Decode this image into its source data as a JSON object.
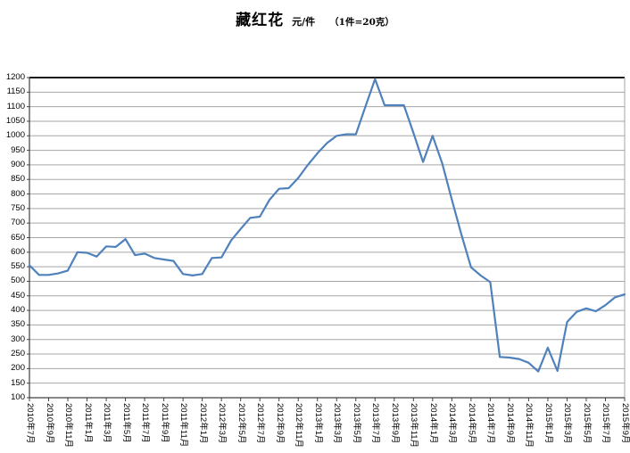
{
  "title": {
    "main": "藏红花",
    "unit": "元/件",
    "spec": "（1件=20克）"
  },
  "chart_data": {
    "type": "line",
    "title": "藏红花 元/件 （1件=20克）",
    "xlabel": "",
    "ylabel": "",
    "ylim": [
      100,
      1200
    ],
    "y_tick_step": 50,
    "grid": true,
    "legend": false,
    "x_label_interval": 2,
    "x_labels": [
      "2010年7月",
      "2010年9月",
      "2010年11月",
      "2011年1月",
      "2011年3月",
      "2011年5月",
      "2011年7月",
      "2011年9月",
      "2011年11月",
      "2012年1月",
      "2012年3月",
      "2012年5月",
      "2012年7月",
      "2012年9月",
      "2012年11月",
      "2013年1月",
      "2013年3月",
      "2013年5月",
      "2013年7月",
      "2013年9月",
      "2013年11月",
      "2014年1月",
      "2014年3月",
      "2014年5月",
      "2014年7月",
      "2014年9月",
      "2014年11月",
      "2015年1月",
      "2015年3月",
      "2015年5月",
      "2015年7月",
      "2015年9月"
    ],
    "values": [
      555,
      522,
      522,
      527,
      537,
      600,
      598,
      585,
      620,
      618,
      645,
      590,
      595,
      580,
      575,
      570,
      525,
      520,
      525,
      580,
      582,
      640,
      680,
      718,
      722,
      780,
      818,
      820,
      855,
      900,
      940,
      975,
      1000,
      1005,
      1005,
      1100,
      1195,
      1105,
      1105,
      1105,
      1010,
      910,
      1000,
      905,
      780,
      660,
      548,
      520,
      497,
      240,
      238,
      233,
      220,
      190,
      272,
      192,
      360,
      395,
      407,
      397,
      418,
      445,
      455
    ],
    "colors": {
      "line": "#4F81BD",
      "gridline": "#A6A6A6",
      "axis": "#404040",
      "text": "#000000",
      "background": "#FFFFFF"
    }
  }
}
